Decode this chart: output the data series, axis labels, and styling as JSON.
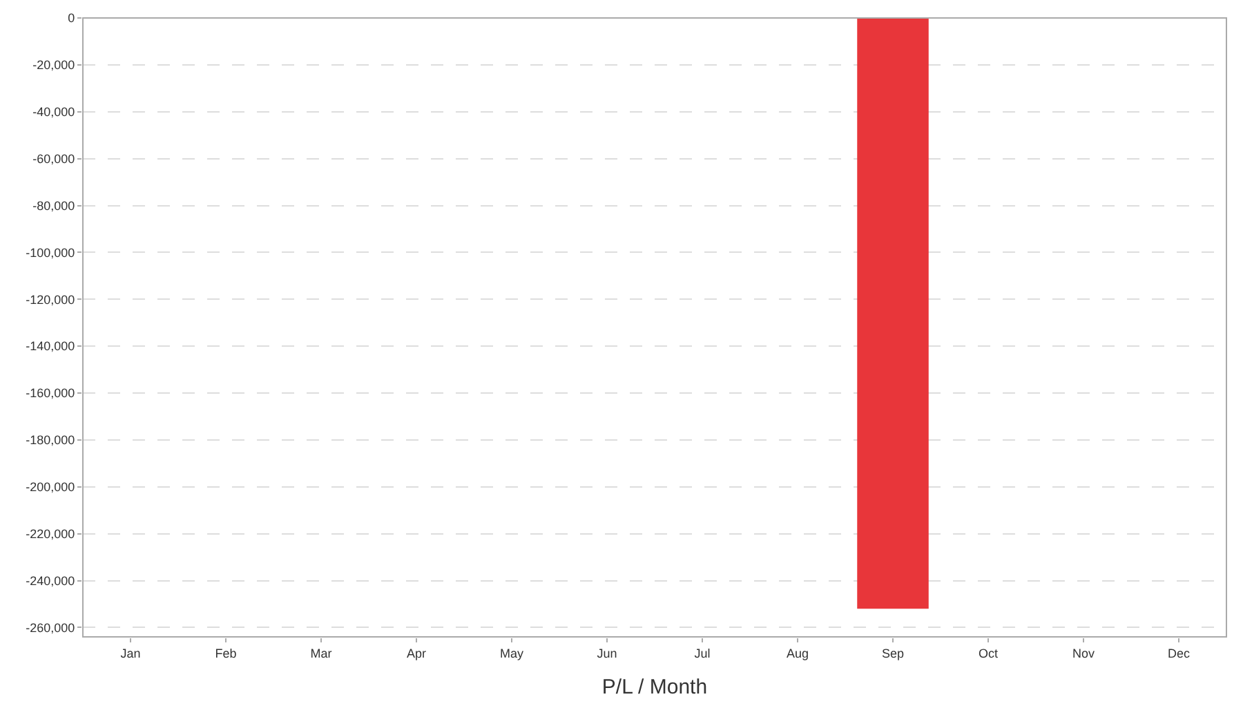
{
  "chart_data": {
    "type": "bar",
    "xlabel": "P/L / Month",
    "categories": [
      "Jan",
      "Feb",
      "Mar",
      "Apr",
      "May",
      "Jun",
      "Jul",
      "Aug",
      "Sep",
      "Oct",
      "Nov",
      "Dec"
    ],
    "values": [
      null,
      null,
      null,
      null,
      null,
      null,
      null,
      null,
      -252000,
      null,
      null,
      null
    ],
    "color": "#e8363a",
    "ylim": [
      -264000,
      0
    ],
    "yticks": [
      {
        "value": 0,
        "label": "0"
      },
      {
        "value": -20000,
        "label": "-20,000"
      },
      {
        "value": -40000,
        "label": "-40,000"
      },
      {
        "value": -60000,
        "label": "-60,000"
      },
      {
        "value": -80000,
        "label": "-80,000"
      },
      {
        "value": -100000,
        "label": "-100,000"
      },
      {
        "value": -120000,
        "label": "-120,000"
      },
      {
        "value": -140000,
        "label": "-140,000"
      },
      {
        "value": -160000,
        "label": "-160,000"
      },
      {
        "value": -180000,
        "label": "-180,000"
      },
      {
        "value": -200000,
        "label": "-200,000"
      },
      {
        "value": -220000,
        "label": "-220,000"
      },
      {
        "value": -240000,
        "label": "-240,000"
      },
      {
        "value": -260000,
        "label": "-260,000"
      }
    ],
    "grid": "y",
    "legend": false
  }
}
